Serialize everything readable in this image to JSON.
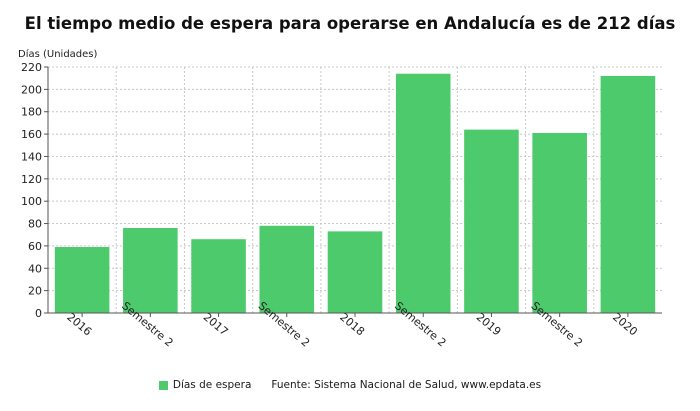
{
  "chart_data": {
    "type": "bar",
    "title": "El tiempo medio de espera para operarse en Andalucía es de 212 días",
    "ylabel": "Días (Unidades)",
    "xlabel": "",
    "categories": [
      "2016",
      "Semestre 2",
      "2017",
      "Semestre 2",
      "2018",
      "Semestre 2",
      "2019",
      "Semestre 2",
      "2020"
    ],
    "series": [
      {
        "name": "Días de espera",
        "values": [
          59,
          76,
          66,
          78,
          73,
          214,
          164,
          161,
          212
        ]
      }
    ],
    "ylim": [
      0,
      220
    ],
    "yticks": [
      0,
      20,
      40,
      60,
      80,
      100,
      120,
      140,
      160,
      180,
      200,
      220
    ],
    "grid": true,
    "legend_position": "bottom",
    "source": "Fuente: Sistema Nacional de Salud, www.epdata.es",
    "bar_color": "#4dca6c"
  }
}
